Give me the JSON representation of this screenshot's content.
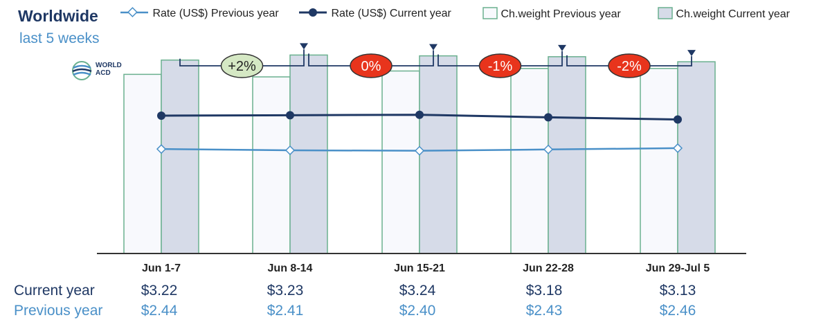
{
  "header": {
    "title": "Worldwide",
    "subtitle": "last 5 weeks",
    "logo_text": [
      "WORLD",
      "ACD"
    ]
  },
  "legend": [
    {
      "name": "Rate (US$) Previous year",
      "kind": "line-diamond",
      "color": "#4a90c8"
    },
    {
      "name": "Rate (US$) Current year",
      "kind": "line-dot",
      "color": "#1f3864"
    },
    {
      "name": "Ch.weight Previous year",
      "kind": "bar",
      "color": "#f8f9fd",
      "stroke": "#6ab08f"
    },
    {
      "name": "Ch.weight Current year",
      "kind": "bar",
      "color": "#d6dbe8",
      "stroke": "#6ab08f"
    }
  ],
  "chart_data": {
    "type": "bar",
    "categories": [
      "Jun 1-7",
      "Jun 8-14",
      "Jun 15-21",
      "Jun 22-28",
      "Jun 29-Jul 5"
    ],
    "bar_series": [
      {
        "name": "Ch.weight Previous year",
        "values": [
          213,
          210,
          217,
          220,
          220
        ]
      },
      {
        "name": "Ch.weight Current year",
        "values": [
          230,
          236,
          235,
          234,
          228
        ]
      }
    ],
    "bar_ylim": [
      0,
      280
    ],
    "line_series": [
      {
        "name": "Rate (US$) Current year",
        "values": [
          3.22,
          3.23,
          3.24,
          3.18,
          3.13
        ]
      },
      {
        "name": "Rate (US$) Previous year",
        "values": [
          2.44,
          2.41,
          2.4,
          2.43,
          2.46
        ]
      }
    ],
    "line_ylim": [
      0,
      5.5
    ],
    "changes": [
      {
        "label": "+2%",
        "fill": "#d5e8c4",
        "text_color": "#222222"
      },
      {
        "label": "0%",
        "fill": "#e8341c",
        "text_color": "#ffffff"
      },
      {
        "label": "-1%",
        "fill": "#e8341c",
        "text_color": "#ffffff"
      },
      {
        "label": "-2%",
        "fill": "#e8341c",
        "text_color": "#ffffff"
      }
    ],
    "grid": false,
    "legend_position": "top"
  },
  "table": {
    "current_label": "Current year",
    "previous_label": "Previous year",
    "current_values": [
      "$3.22",
      "$3.23",
      "$3.24",
      "$3.18",
      "$3.13"
    ],
    "previous_values": [
      "$2.44",
      "$2.41",
      "$2.40",
      "$2.43",
      "$2.46"
    ]
  },
  "colors": {
    "navy": "#1f3864",
    "blue": "#4a90c8",
    "bar_stroke": "#6ab08f",
    "axis": "#333333"
  }
}
